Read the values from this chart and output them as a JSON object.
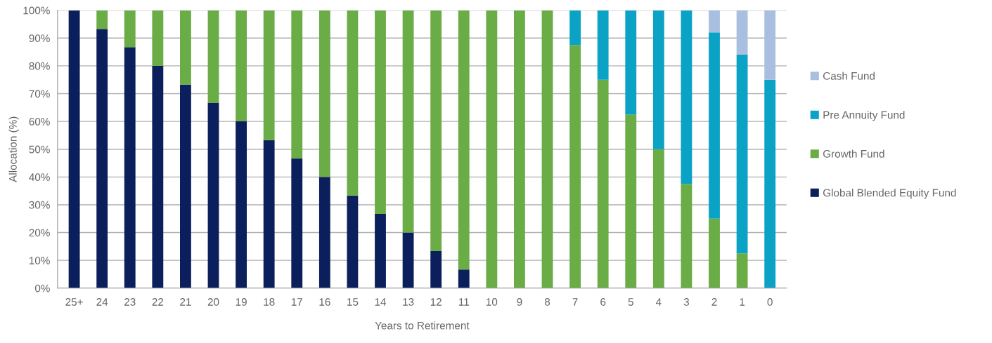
{
  "chart_data": {
    "type": "bar",
    "stacked": true,
    "xlabel": "Years to Retirement",
    "ylabel": "Allocation (%)",
    "categories": [
      "25+",
      "24",
      "23",
      "22",
      "21",
      "20",
      "19",
      "18",
      "17",
      "16",
      "15",
      "14",
      "13",
      "12",
      "11",
      "10",
      "9",
      "8",
      "7",
      "6",
      "5",
      "4",
      "3",
      "2",
      "1",
      "0"
    ],
    "series": [
      {
        "name": "Global Blended Equity Fund",
        "color": "#0b1f5c",
        "values": [
          100,
          93.3,
          86.7,
          80,
          73.3,
          66.7,
          60,
          53.3,
          46.7,
          40,
          33.3,
          26.7,
          20,
          13.3,
          6.7,
          0,
          0,
          0,
          0,
          0,
          0,
          0,
          0,
          0,
          0,
          0
        ]
      },
      {
        "name": "Growth Fund",
        "color": "#6aac45",
        "values": [
          0,
          6.7,
          13.3,
          20,
          26.7,
          33.3,
          40,
          46.7,
          53.3,
          60,
          66.7,
          73.3,
          80,
          86.7,
          93.3,
          100,
          100,
          100,
          87.5,
          75,
          62.5,
          50,
          37.5,
          25,
          12.5,
          0
        ]
      },
      {
        "name": "Pre Annuity Fund",
        "color": "#0aa3c6",
        "values": [
          0,
          0,
          0,
          0,
          0,
          0,
          0,
          0,
          0,
          0,
          0,
          0,
          0,
          0,
          0,
          0,
          0,
          0,
          12.5,
          25,
          37.5,
          50,
          62.5,
          67,
          71.5,
          75
        ]
      },
      {
        "name": "Cash Fund",
        "color": "#a9bfe0",
        "values": [
          0,
          0,
          0,
          0,
          0,
          0,
          0,
          0,
          0,
          0,
          0,
          0,
          0,
          0,
          0,
          0,
          0,
          0,
          0,
          0,
          0,
          0,
          0,
          8,
          16,
          25
        ]
      }
    ],
    "ylim": [
      0,
      100
    ],
    "yticks": [
      {
        "value": 0,
        "label": "0%"
      },
      {
        "value": 10,
        "label": "10%"
      },
      {
        "value": 20,
        "label": "20%"
      },
      {
        "value": 30,
        "label": "30%"
      },
      {
        "value": 40,
        "label": "40%"
      },
      {
        "value": 50,
        "label": "50%"
      },
      {
        "value": 60,
        "label": "60%"
      },
      {
        "value": 70,
        "label": "70%"
      },
      {
        "value": 80,
        "label": "80%"
      },
      {
        "value": 90,
        "label": "90%"
      },
      {
        "value": 100,
        "label": "100%"
      }
    ],
    "grid": "y",
    "legend": "right"
  }
}
